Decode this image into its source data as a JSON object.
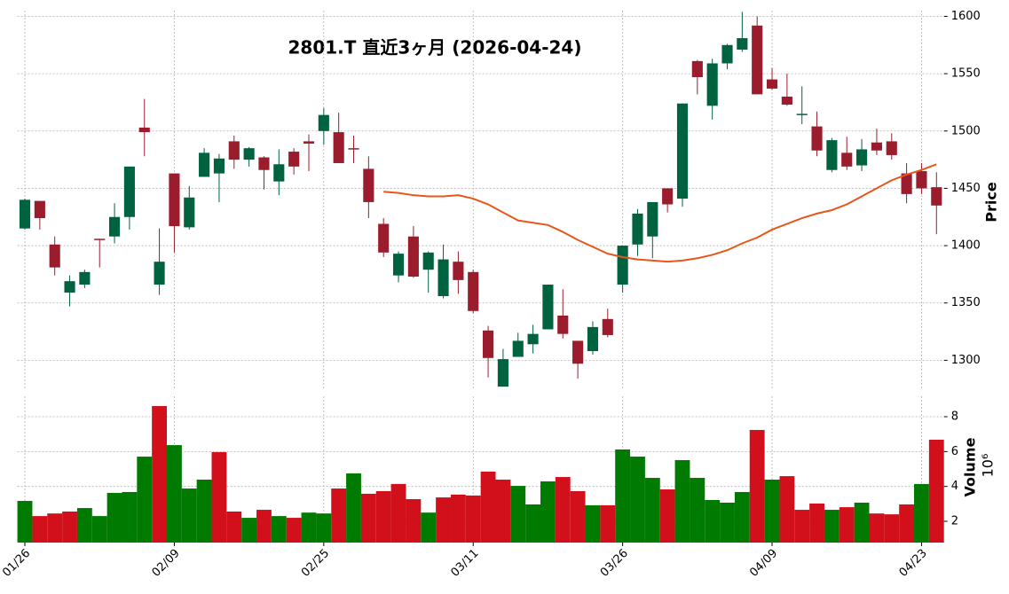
{
  "chart_data": {
    "type": "candlestick",
    "title": "2801.T  直近3ヶ月  (2026-04-24)",
    "ylabel": "Price",
    "categories": [
      "01/26",
      null,
      null,
      null,
      null,
      null,
      null,
      null,
      null,
      null,
      "02/09",
      null,
      null,
      null,
      null,
      null,
      null,
      null,
      null,
      null,
      "02/25",
      null,
      null,
      null,
      null,
      null,
      null,
      null,
      null,
      null,
      "03/11",
      null,
      null,
      null,
      null,
      null,
      null,
      null,
      null,
      null,
      "03/26",
      null,
      null,
      null,
      null,
      null,
      null,
      null,
      null,
      null,
      "04/09",
      null,
      null,
      null,
      null,
      null,
      null,
      null,
      null,
      null,
      "04/23",
      null
    ],
    "open": [
      1415,
      1439,
      1401,
      1359,
      1366,
      1406,
      1408,
      1425,
      1503,
      1366,
      1463,
      1416,
      1460,
      1463,
      1491,
      1475,
      1477,
      1456,
      1482,
      1491,
      1500,
      1499,
      1485,
      1467,
      1419,
      1374,
      1408,
      1379,
      1356,
      1386,
      1377,
      1326,
      1277,
      1303,
      1314,
      1327,
      1339,
      1317,
      1308,
      1336,
      1366,
      1401,
      1408,
      1450,
      1441,
      1561,
      1522,
      1559,
      1571,
      1592,
      1545,
      1530,
      1514,
      1504,
      1466,
      1481,
      1470,
      1490,
      1491,
      1463,
      1465,
      1451
    ],
    "high": [
      1441,
      1439,
      1408,
      1374,
      1379,
      1406,
      1437,
      1469,
      1528,
      1415,
      1463,
      1452,
      1485,
      1480,
      1496,
      1486,
      1478,
      1484,
      1485,
      1497,
      1520,
      1516,
      1496,
      1478,
      1424,
      1395,
      1417,
      1395,
      1401,
      1395,
      1379,
      1330,
      1310,
      1324,
      1331,
      1366,
      1362,
      1317,
      1334,
      1345,
      1400,
      1432,
      1438,
      1450,
      1524,
      1562,
      1563,
      1576,
      1604,
      1600,
      1555,
      1550,
      1539,
      1517,
      1494,
      1495,
      1493,
      1502,
      1498,
      1472,
      1472,
      1464
    ],
    "low": [
      1414,
      1414,
      1374,
      1347,
      1363,
      1381,
      1402,
      1414,
      1478,
      1357,
      1394,
      1414,
      1460,
      1438,
      1467,
      1469,
      1449,
      1444,
      1462,
      1465,
      1488,
      1472,
      1472,
      1424,
      1390,
      1368,
      1372,
      1359,
      1354,
      1358,
      1341,
      1285,
      1277,
      1303,
      1306,
      1327,
      1319,
      1284,
      1305,
      1320,
      1359,
      1391,
      1389,
      1429,
      1434,
      1532,
      1510,
      1554,
      1569,
      1532,
      1536,
      1522,
      1506,
      1478,
      1464,
      1466,
      1465,
      1479,
      1475,
      1437,
      1445,
      1410
    ],
    "close": [
      1440,
      1424,
      1381,
      1369,
      1377,
      1405,
      1425,
      1469,
      1499,
      1386,
      1417,
      1442,
      1481,
      1476,
      1475,
      1485,
      1466,
      1471,
      1469,
      1489,
      1514,
      1472,
      1484,
      1438,
      1394,
      1393,
      1373,
      1394,
      1388,
      1370,
      1343,
      1302,
      1301,
      1317,
      1323,
      1366,
      1323,
      1297,
      1329,
      1322,
      1400,
      1428,
      1438,
      1436,
      1524,
      1547,
      1559,
      1575,
      1581,
      1532,
      1537,
      1523,
      1515,
      1483,
      1492,
      1469,
      1484,
      1483,
      1479,
      1445,
      1450,
      1435
    ],
    "up_color": "#006340",
    "down_color": "#9b1d2d",
    "ylim": [
      1274,
      1605
    ],
    "yticks": [
      1300,
      1350,
      1400,
      1450,
      1500,
      1550,
      1600
    ],
    "grid": true,
    "moving_average": {
      "color": "#e8561a",
      "values": [
        null,
        null,
        null,
        null,
        null,
        null,
        null,
        null,
        null,
        null,
        null,
        null,
        null,
        null,
        null,
        null,
        null,
        null,
        null,
        null,
        null,
        null,
        null,
        null,
        1447,
        1446,
        1444,
        1443,
        1443,
        1444,
        1441,
        1436,
        1429,
        1422,
        1420,
        1418,
        1412,
        1405,
        1399,
        1393,
        1390,
        1388,
        1387,
        1386,
        1387,
        1389,
        1392,
        1396,
        1402,
        1407,
        1414,
        1419,
        1424,
        1428,
        1431,
        1436,
        1443,
        1450,
        1457,
        1462,
        1466,
        1471
      ]
    },
    "volume": {
      "label": "Volume",
      "scale_label": "10⁶",
      "up_color": "#007a00",
      "down_color": "#d2101b",
      "ylim": [
        0.78,
        9.17
      ],
      "yticks": [
        2,
        4,
        6,
        8
      ],
      "values": [
        3.17,
        2.3,
        2.45,
        2.56,
        2.76,
        2.3,
        3.63,
        3.68,
        5.71,
        8.61,
        6.37,
        3.88,
        4.39,
        5.97,
        2.56,
        2.2,
        2.66,
        2.3,
        2.2,
        2.5,
        2.45,
        3.88,
        4.75,
        3.58,
        3.73,
        4.14,
        3.27,
        2.5,
        3.37,
        3.53,
        3.48,
        4.85,
        4.39,
        4.03,
        2.97,
        4.29,
        4.54,
        3.73,
        2.92,
        2.92,
        6.12,
        5.71,
        4.49,
        3.83,
        5.51,
        4.49,
        3.22,
        3.07,
        3.68,
        7.24,
        4.39,
        4.59,
        2.66,
        3.02,
        2.66,
        2.81,
        3.07,
        2.45,
        2.4,
        2.97,
        4.14,
        6.68
      ]
    }
  }
}
